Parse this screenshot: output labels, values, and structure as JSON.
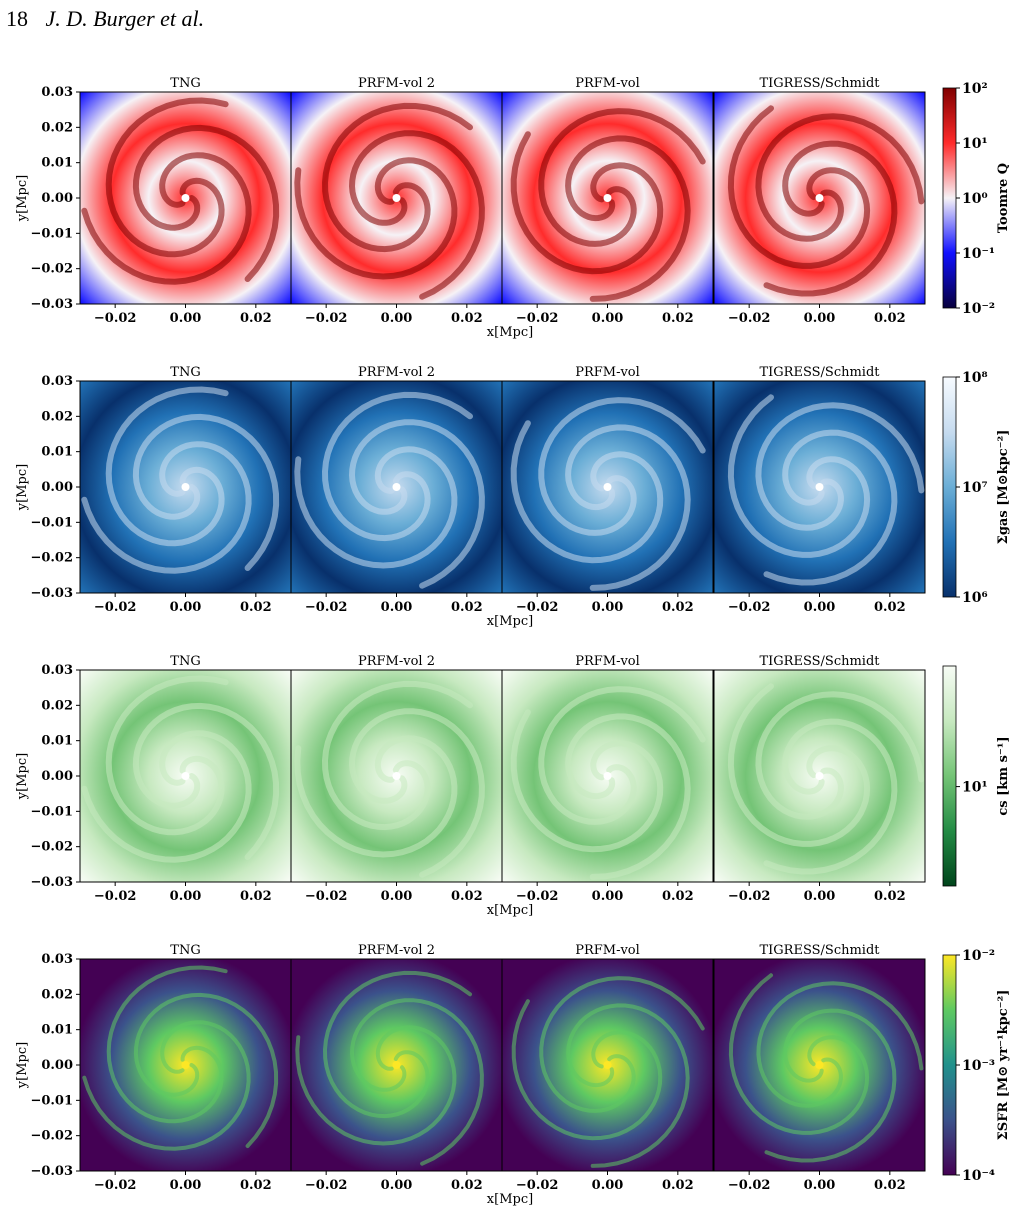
{
  "header": {
    "page_number": "18",
    "authors": "J. D. Burger et al."
  },
  "chart_data": {
    "type": "heatmap",
    "panel_titles": [
      "TNG",
      "PRFM-vol 2",
      "PRFM-vol",
      "TIGRESS/Schmidt"
    ],
    "xlabel": "x[Mpc]",
    "ylabel": "y[Mpc]",
    "xlim": [
      -0.03,
      0.03
    ],
    "ylim": [
      -0.03,
      0.03
    ],
    "x_ticks": [
      "−0.02",
      "0.00",
      "0.02"
    ],
    "y_ticks": [
      "0.03",
      "0.02",
      "0.01",
      "0.00",
      "−0.01",
      "−0.02",
      "−0.03"
    ],
    "rows": [
      {
        "colorbar_label": "Toomre Q",
        "colormap": "seismic",
        "colorbar_ticks": [
          "10²",
          "10¹",
          "10⁰",
          "10⁻¹",
          "10⁻²"
        ],
        "scale": "log",
        "range": [
          0.01,
          100
        ],
        "colors": [
          "#08003d",
          "#1010ff",
          "#f6f2f6",
          "#ff2b2b",
          "#800000"
        ]
      },
      {
        "colorbar_label": "Σgas [M⊙kpc⁻²]",
        "colormap": "Blues_r",
        "colorbar_ticks": [
          "10⁸",
          "10⁷",
          "10⁶"
        ],
        "scale": "log",
        "range": [
          1000000,
          200000000
        ],
        "colors": [
          "#08306b",
          "#2171b5",
          "#6baed6",
          "#c6dbef",
          "#f7fbff"
        ]
      },
      {
        "colorbar_label": "cs [km s⁻¹]",
        "colormap": "Greens_r",
        "colorbar_ticks": [
          "10¹"
        ],
        "scale": "log",
        "colors": [
          "#00441b",
          "#238b45",
          "#74c476",
          "#c7e9c0",
          "#f7fcf5"
        ]
      },
      {
        "colorbar_label": "ΣSFR [M⊙ yr⁻¹kpc⁻²]",
        "colormap": "viridis",
        "colorbar_ticks": [
          "10⁻²",
          "10⁻³",
          "10⁻⁴"
        ],
        "scale": "log",
        "colors": [
          "#440154",
          "#3b528b",
          "#21918c",
          "#5ec962",
          "#fde725"
        ]
      }
    ]
  }
}
